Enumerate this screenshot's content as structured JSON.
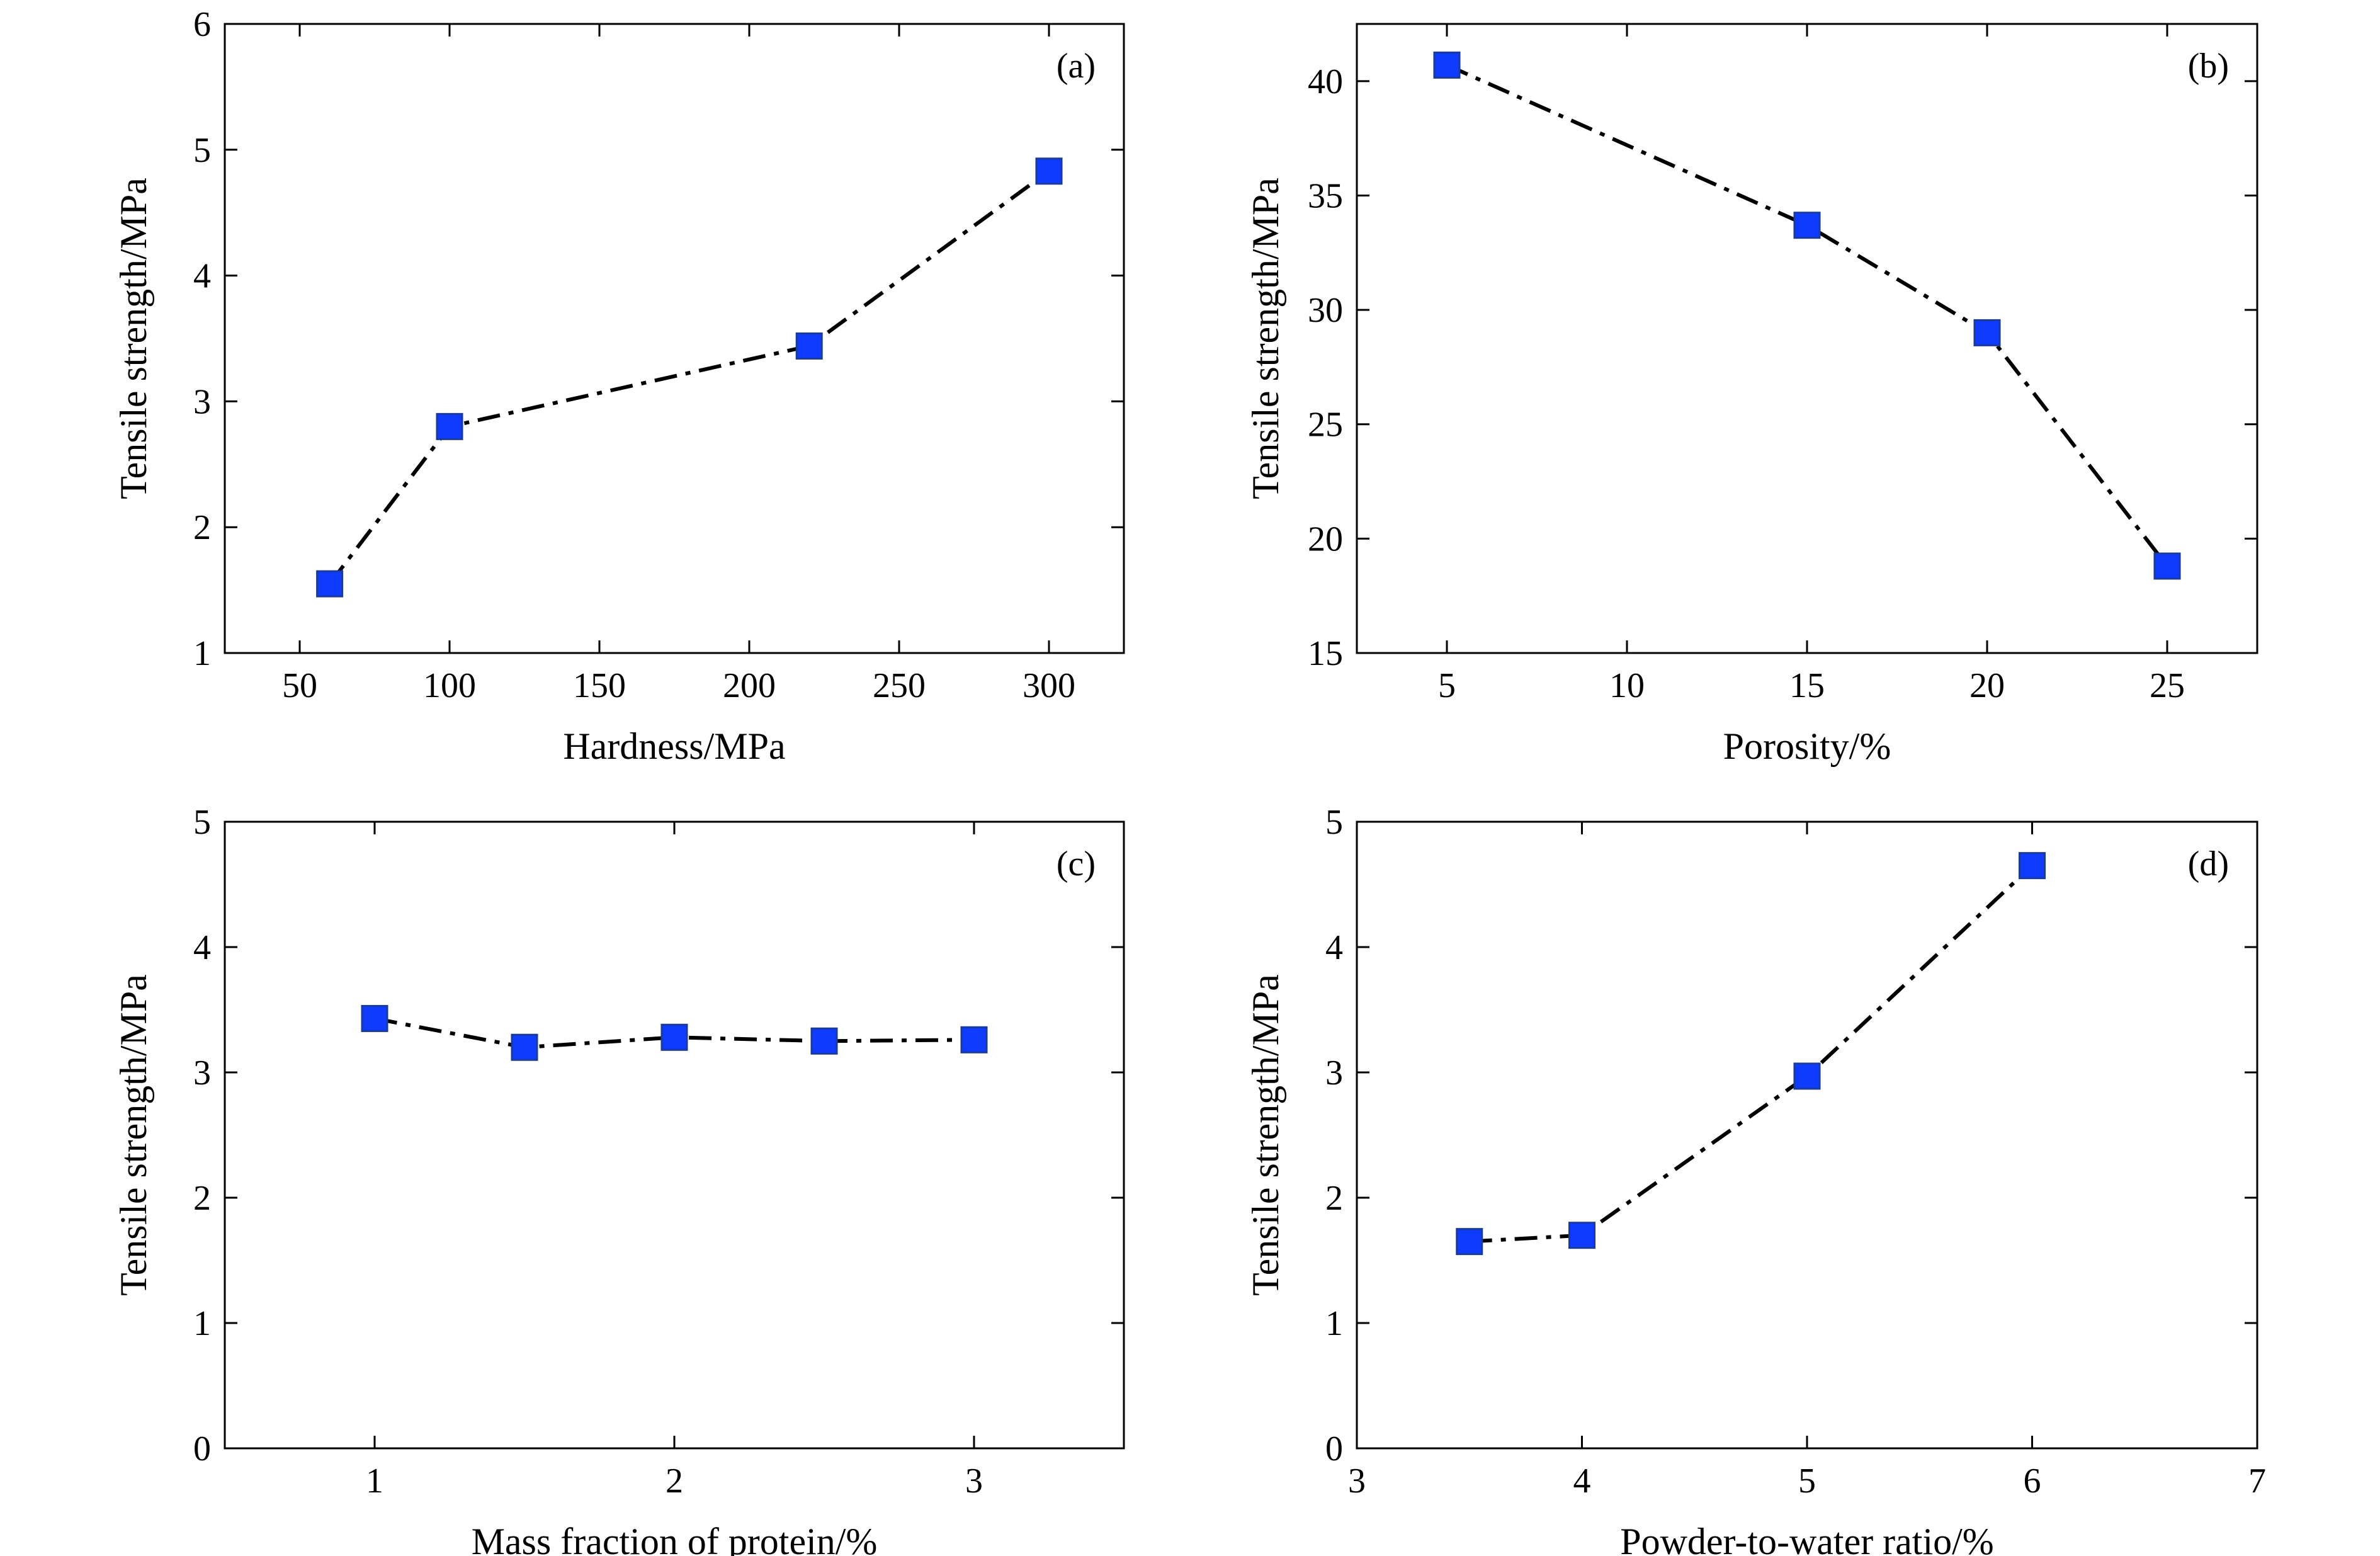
{
  "figure": {
    "marker_color": "#0f3bff",
    "line_color": "#000000",
    "line_style": "dash-dot",
    "marker_shape": "square"
  },
  "chart_data": [
    {
      "id": "a",
      "type": "line",
      "panel_label": "(a)",
      "xlabel": "Hardness/MPa",
      "ylabel": "Tensile strength/MPa",
      "xlim": [
        25,
        325
      ],
      "ylim": [
        1,
        6
      ],
      "xticks": [
        50,
        100,
        150,
        200,
        250,
        300
      ],
      "yticks": [
        1,
        2,
        3,
        4,
        5,
        6
      ],
      "series": [
        {
          "x": [
            60,
            100,
            220,
            300
          ],
          "y": [
            1.55,
            2.8,
            3.44,
            4.83
          ]
        }
      ]
    },
    {
      "id": "b",
      "type": "line",
      "panel_label": "(b)",
      "xlabel": "Porosity/%",
      "ylabel": "Tensile strength/MPa",
      "xlim": [
        2.5,
        27.5
      ],
      "ylim": [
        15,
        42.5
      ],
      "xticks": [
        5,
        10,
        15,
        20,
        25
      ],
      "yticks": [
        15,
        20,
        25,
        30,
        35,
        40
      ],
      "series": [
        {
          "x": [
            5,
            15,
            20,
            25
          ],
          "y": [
            40.7,
            33.7,
            29.0,
            18.8
          ]
        }
      ]
    },
    {
      "id": "c",
      "type": "line",
      "panel_label": "(c)",
      "xlabel": "Mass fraction of protein/%",
      "ylabel": "Tensile strength/MPa",
      "xlim": [
        0.5,
        3.5
      ],
      "ylim": [
        0,
        5
      ],
      "xticks": [
        1,
        2,
        3
      ],
      "yticks": [
        0,
        1,
        2,
        3,
        4,
        5
      ],
      "series": [
        {
          "x": [
            1,
            1.5,
            2,
            2.5,
            3
          ],
          "y": [
            3.43,
            3.2,
            3.28,
            3.25,
            3.26
          ]
        }
      ]
    },
    {
      "id": "d",
      "type": "line",
      "panel_label": "(d)",
      "xlabel": "Powder-to-water ratio/%",
      "ylabel": "Tensile strength/MPa",
      "xlim": [
        3,
        7
      ],
      "ylim": [
        0,
        5
      ],
      "xticks": [
        3,
        4,
        5,
        6,
        7
      ],
      "yticks": [
        0,
        1,
        2,
        3,
        4,
        5
      ],
      "series": [
        {
          "x": [
            3.5,
            4,
            5,
            6
          ],
          "y": [
            1.65,
            1.7,
            2.97,
            4.65
          ]
        }
      ]
    }
  ]
}
